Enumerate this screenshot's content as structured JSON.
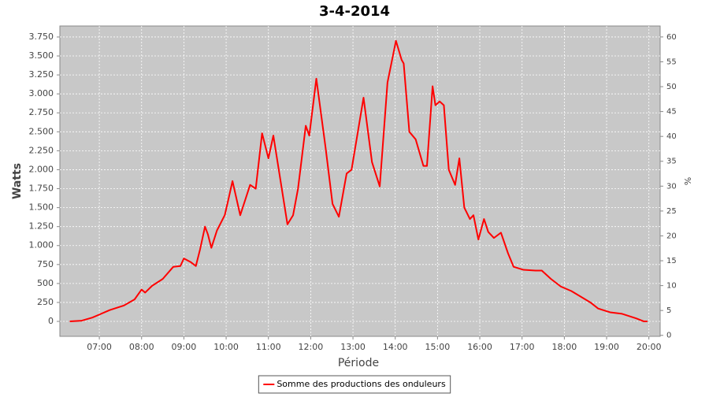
{
  "chart_data": {
    "type": "line",
    "title": "3-4-2014",
    "x_label": "Période",
    "y_label": "Watts",
    "y2_label": "%",
    "x": [
      "06:18",
      "06:35",
      "06:50",
      "07:00",
      "07:15",
      "07:35",
      "07:50",
      "08:00",
      "08:05",
      "08:15",
      "08:30",
      "08:45",
      "08:55",
      "09:00",
      "09:10",
      "09:17",
      "09:23",
      "09:30",
      "09:34",
      "09:39",
      "09:47",
      "09:58",
      "10:03",
      "10:09",
      "10:20",
      "10:34",
      "10:42",
      "10:51",
      "11:00",
      "11:07",
      "11:27",
      "11:35",
      "11:42",
      "11:53",
      "11:58",
      "12:08",
      "12:21",
      "12:31",
      "12:40",
      "12:51",
      "12:58",
      "13:15",
      "13:27",
      "13:38",
      "13:49",
      "14:01",
      "14:09",
      "14:12",
      "14:20",
      "14:29",
      "14:40",
      "14:45",
      "14:53",
      "14:57",
      "15:03",
      "15:09",
      "15:16",
      "15:25",
      "15:31",
      "15:38",
      "15:46",
      "15:51",
      "15:58",
      "16:06",
      "16:12",
      "16:20",
      "16:30",
      "16:40",
      "16:48",
      "17:02",
      "17:19",
      "17:28",
      "17:41",
      "17:55",
      "18:10",
      "18:37",
      "18:48",
      "19:05",
      "19:22",
      "19:42",
      "19:53",
      "19:58"
    ],
    "series": [
      {
        "name": "Somme des productions des onduleurs",
        "color": "#ff0000",
        "values": [
          0,
          10,
          50,
          90,
          150,
          210,
          290,
          420,
          380,
          470,
          560,
          720,
          730,
          830,
          780,
          730,
          950,
          1250,
          1150,
          970,
          1200,
          1400,
          1600,
          1850,
          1400,
          1800,
          1750,
          2480,
          2150,
          2450,
          1280,
          1400,
          1750,
          2580,
          2450,
          3200,
          2300,
          1550,
          1380,
          1950,
          2000,
          2950,
          2100,
          1780,
          3150,
          3700,
          3450,
          3400,
          2500,
          2400,
          2050,
          2050,
          3100,
          2850,
          2900,
          2850,
          2000,
          1800,
          2150,
          1500,
          1350,
          1400,
          1080,
          1350,
          1180,
          1100,
          1170,
          900,
          720,
          680,
          670,
          670,
          560,
          460,
          400,
          250,
          170,
          120,
          100,
          40,
          0,
          0
        ]
      }
    ],
    "xlim": [
      "06:04",
      "20:16"
    ],
    "xticks": [
      "07:00",
      "08:00",
      "09:00",
      "10:00",
      "11:00",
      "12:00",
      "13:00",
      "14:00",
      "15:00",
      "16:00",
      "17:00",
      "18:00",
      "19:00",
      "20:00"
    ],
    "ylim": [
      -197,
      3895
    ],
    "yticks": [
      0,
      250,
      500,
      750,
      {
        "value": 1000,
        "label": "1.000"
      },
      {
        "value": 1250,
        "label": "1.250"
      },
      {
        "value": 1500,
        "label": "1.500"
      },
      {
        "value": 1750,
        "label": "1.750"
      },
      {
        "value": 2000,
        "label": "2.000"
      },
      {
        "value": 2250,
        "label": "2.250"
      },
      {
        "value": 2500,
        "label": "2.500"
      },
      {
        "value": 2750,
        "label": "2.750"
      },
      {
        "value": 3000,
        "label": "3.000"
      },
      {
        "value": 3250,
        "label": "3.250"
      },
      {
        "value": 3500,
        "label": "3.500"
      },
      {
        "value": 3750,
        "label": "3.750"
      }
    ],
    "y2lim": [
      -0.2,
      62.2
    ],
    "y2ticks": [
      0,
      5,
      10,
      15,
      20,
      25,
      30,
      35,
      40,
      45,
      50,
      55,
      60
    ],
    "grid": true,
    "legend": "bottom",
    "plot_background": "#c8c8c8"
  }
}
